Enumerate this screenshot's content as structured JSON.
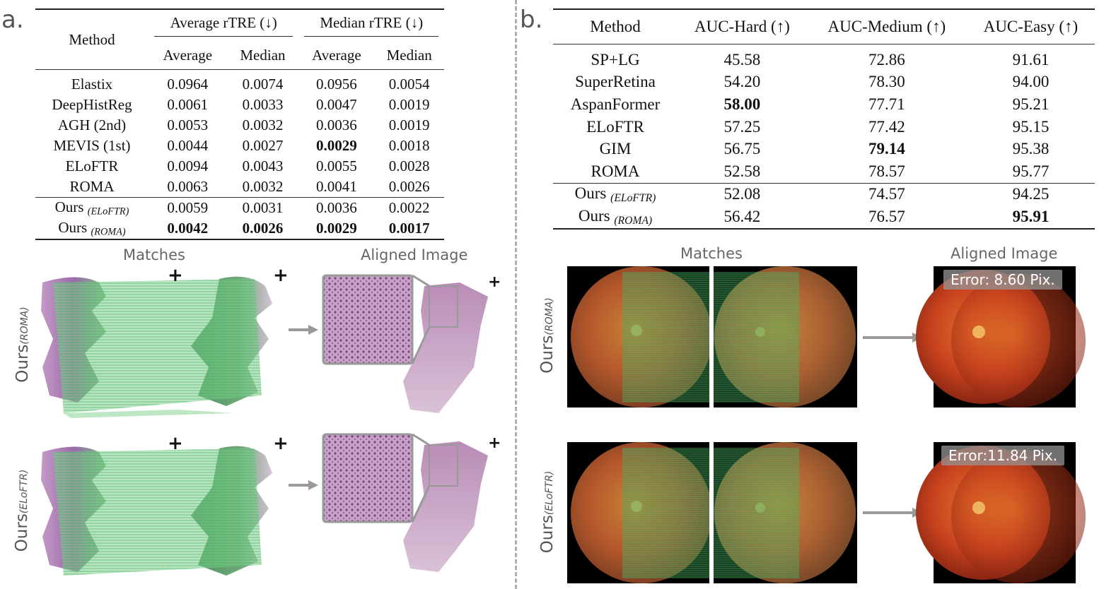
{
  "panel_a": {
    "letter": "a.",
    "table": {
      "method_header": "Method",
      "group_headers": [
        "Average rTRE (↓)",
        "Median rTRE (↓)"
      ],
      "sub_headers": [
        "Average",
        "Median",
        "Average",
        "Median"
      ],
      "rows": [
        {
          "method": "Elastix",
          "values": [
            "0.0964",
            "0.0074",
            "0.0956",
            "0.0054"
          ]
        },
        {
          "method": "DeepHistReg",
          "values": [
            "0.0061",
            "0.0033",
            "0.0047",
            "0.0019"
          ]
        },
        {
          "method": "AGH (2nd)",
          "values": [
            "0.0053",
            "0.0032",
            "0.0036",
            "0.0019"
          ]
        },
        {
          "method": "MEVIS (1st)",
          "values": [
            "0.0044",
            "0.0027",
            "0.0029",
            "0.0018"
          ]
        },
        {
          "method": "ELoFTR",
          "values": [
            "0.0094",
            "0.0043",
            "0.0055",
            "0.0028"
          ]
        },
        {
          "method": "ROMA",
          "values": [
            "0.0063",
            "0.0032",
            "0.0041",
            "0.0026"
          ]
        }
      ],
      "ours_rows": [
        {
          "method": "Ours",
          "sub": "(ELoFTR)",
          "values": [
            "0.0059",
            "0.0031",
            "0.0036",
            "0.0022"
          ]
        },
        {
          "method": "Ours",
          "sub": "(ROMA)",
          "values": [
            "0.0042",
            "0.0026",
            "0.0029",
            "0.0017"
          ]
        }
      ]
    },
    "captions": {
      "matches": "Matches",
      "aligned": "Aligned Image"
    },
    "row_labels": [
      {
        "main": "Ours",
        "sub": "(ROMA)"
      },
      {
        "main": "Ours",
        "sub": "(ELoFTR)"
      }
    ]
  },
  "panel_b": {
    "letter": "b.",
    "table": {
      "headers": [
        "Method",
        "AUC-Hard (↑)",
        "AUC-Medium (↑)",
        "AUC-Easy (↑)"
      ],
      "rows": [
        {
          "method": "SP+LG",
          "values": [
            "45.58",
            "72.86",
            "91.61"
          ]
        },
        {
          "method": "SuperRetina",
          "values": [
            "54.20",
            "78.30",
            "94.00"
          ]
        },
        {
          "method": "AspanFormer",
          "values": [
            "58.00",
            "77.71",
            "95.21"
          ]
        },
        {
          "method": "ELoFTR",
          "values": [
            "57.25",
            "77.42",
            "95.15"
          ]
        },
        {
          "method": "GIM",
          "values": [
            "56.75",
            "79.14",
            "95.38"
          ]
        },
        {
          "method": "ROMA",
          "values": [
            "52.58",
            "78.57",
            "95.77"
          ]
        }
      ],
      "ours_rows": [
        {
          "method": "Ours",
          "sub": "(ELoFTR)",
          "values": [
            "52.08",
            "74.57",
            "94.25"
          ]
        },
        {
          "method": "Ours",
          "sub": "(ROMA)",
          "values": [
            "56.42",
            "76.57",
            "95.91"
          ]
        }
      ]
    },
    "captions": {
      "matches": "Matches",
      "aligned": "Aligned Image"
    },
    "row_labels": [
      {
        "main": "Ours",
        "sub": "(ROMA)"
      },
      {
        "main": "Ours",
        "sub": "(ELoFTR)"
      }
    ],
    "errors": [
      "Error: 8.60 Pix.",
      "Error:11.84 Pix."
    ]
  }
}
